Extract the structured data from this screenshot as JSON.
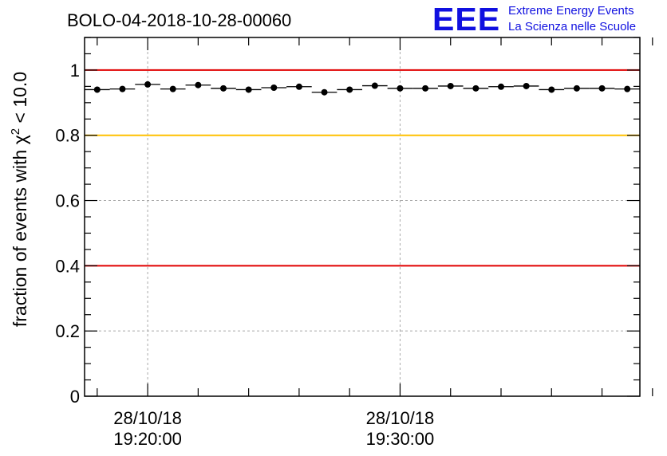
{
  "logo": {
    "mark": "EEE",
    "line1": "Extreme Energy Events",
    "line2": "La Scienza nelle Scuole",
    "color": "#1010e0"
  },
  "chart_data": {
    "type": "scatter",
    "title": "BOLO-04-2018-10-28-00060",
    "xlabel": "",
    "ylabel": "fraction of events with χ² < 10.0",
    "ylabel_parts": {
      "prefix": "fraction of events with ",
      "chi": "χ",
      "sup": "2",
      "suffix": " < 10.0"
    },
    "ylim": [
      0,
      1.1
    ],
    "xlim_minutes": [
      -2,
      20
    ],
    "y_ticks": [
      {
        "value": 0,
        "label": "0"
      },
      {
        "value": 0.2,
        "label": "0.2"
      },
      {
        "value": 0.4,
        "label": "0.4"
      },
      {
        "value": 0.6,
        "label": "0.6"
      },
      {
        "value": 0.8,
        "label": "0.8"
      },
      {
        "value": 1.0,
        "label": "1"
      }
    ],
    "x_ticks": [
      {
        "minute": 0,
        "date": "28/10/18",
        "time": "19:20:00"
      },
      {
        "minute": 10,
        "date": "28/10/18",
        "time": "19:30:00"
      }
    ],
    "bin_width_minutes": 1,
    "reference_lines": [
      {
        "value": 1.0,
        "color": "#e00000"
      },
      {
        "value": 0.8,
        "color": "#ffc000"
      },
      {
        "value": 0.4,
        "color": "#e00000"
      }
    ],
    "grid": true,
    "series": [
      {
        "name": "fraction",
        "x_minutes": [
          -2,
          -1,
          0,
          1,
          2,
          3,
          4,
          5,
          6,
          7,
          8,
          9,
          10,
          11,
          12,
          13,
          14,
          15,
          16,
          17,
          18,
          19
        ],
        "values": [
          0.94,
          0.942,
          0.956,
          0.942,
          0.954,
          0.944,
          0.94,
          0.946,
          0.949,
          0.932,
          0.94,
          0.952,
          0.944,
          0.944,
          0.951,
          0.944,
          0.949,
          0.951,
          0.94,
          0.944,
          0.944,
          0.942
        ]
      }
    ]
  }
}
